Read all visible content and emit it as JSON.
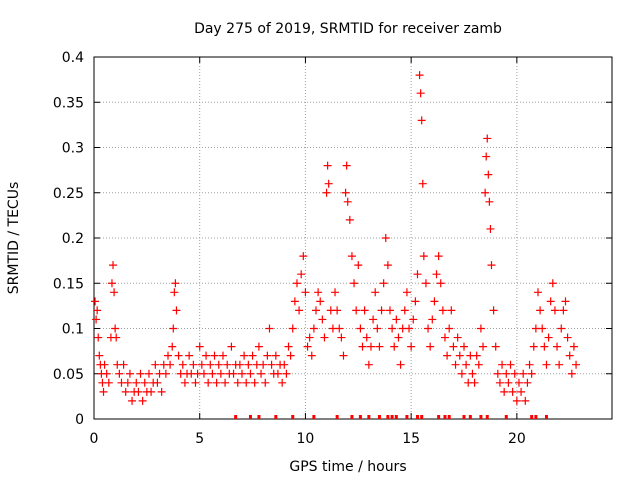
{
  "chart_data": {
    "type": "scatter",
    "title": "Day 275 of 2019, SRMTID for receiver zamb",
    "xlabel": "GPS time / hours",
    "ylabel": "SRMTID / TECUs",
    "xlim": [
      0,
      24.5
    ],
    "ylim": [
      0,
      0.4
    ],
    "x_ticks": [
      0,
      5,
      10,
      15,
      20
    ],
    "x_tick_labels": [
      "0",
      "5",
      "10",
      "15",
      "20"
    ],
    "y_ticks": [
      0,
      0.05,
      0.1,
      0.15,
      0.2,
      0.25,
      0.3,
      0.35,
      0.4
    ],
    "y_tick_labels": [
      "0",
      "0.05",
      "0.1",
      "0.15",
      "0.2",
      "0.25",
      "0.3",
      "0.35",
      "0.4"
    ],
    "grid": true,
    "marker": "plus",
    "series_color": "#ff0000",
    "series": [
      {
        "name": "SRMTID",
        "points": [
          [
            0.05,
            0.13
          ],
          [
            0.1,
            0.11
          ],
          [
            0.15,
            0.12
          ],
          [
            0.2,
            0.09
          ],
          [
            0.25,
            0.07
          ],
          [
            0.3,
            0.06
          ],
          [
            0.35,
            0.05
          ],
          [
            0.4,
            0.04
          ],
          [
            0.45,
            0.03
          ],
          [
            0.5,
            0.06
          ],
          [
            0.6,
            0.05
          ],
          [
            0.7,
            0.04
          ],
          [
            0.8,
            0.09
          ],
          [
            0.85,
            0.15
          ],
          [
            0.9,
            0.17
          ],
          [
            0.95,
            0.14
          ],
          [
            1.0,
            0.1
          ],
          [
            1.05,
            0.09
          ],
          [
            1.1,
            0.06
          ],
          [
            1.2,
            0.05
          ],
          [
            1.3,
            0.04
          ],
          [
            1.4,
            0.06
          ],
          [
            1.5,
            0.03
          ],
          [
            1.6,
            0.04
          ],
          [
            1.7,
            0.05
          ],
          [
            1.8,
            0.02
          ],
          [
            1.9,
            0.03
          ],
          [
            2.0,
            0.04
          ],
          [
            2.1,
            0.03
          ],
          [
            2.2,
            0.05
          ],
          [
            2.3,
            0.02
          ],
          [
            2.4,
            0.04
          ],
          [
            2.5,
            0.03
          ],
          [
            2.6,
            0.05
          ],
          [
            2.7,
            0.03
          ],
          [
            2.8,
            0.04
          ],
          [
            2.9,
            0.06
          ],
          [
            3.0,
            0.04
          ],
          [
            3.1,
            0.05
          ],
          [
            3.2,
            0.03
          ],
          [
            3.3,
            0.06
          ],
          [
            3.4,
            0.05
          ],
          [
            3.5,
            0.07
          ],
          [
            3.6,
            0.06
          ],
          [
            3.7,
            0.08
          ],
          [
            3.75,
            0.1
          ],
          [
            3.8,
            0.14
          ],
          [
            3.85,
            0.15
          ],
          [
            3.9,
            0.12
          ],
          [
            4.0,
            0.07
          ],
          [
            4.1,
            0.05
          ],
          [
            4.2,
            0.06
          ],
          [
            4.3,
            0.04
          ],
          [
            4.4,
            0.05
          ],
          [
            4.5,
            0.07
          ],
          [
            4.6,
            0.05
          ],
          [
            4.7,
            0.06
          ],
          [
            4.8,
            0.04
          ],
          [
            4.9,
            0.05
          ],
          [
            5.0,
            0.08
          ],
          [
            5.1,
            0.06
          ],
          [
            5.2,
            0.05
          ],
          [
            5.3,
            0.07
          ],
          [
            5.4,
            0.04
          ],
          [
            5.5,
            0.06
          ],
          [
            5.6,
            0.05
          ],
          [
            5.7,
            0.07
          ],
          [
            5.8,
            0.04
          ],
          [
            5.9,
            0.06
          ],
          [
            6.0,
            0.05
          ],
          [
            6.1,
            0.07
          ],
          [
            6.2,
            0.04
          ],
          [
            6.3,
            0.06
          ],
          [
            6.4,
            0.05
          ],
          [
            6.5,
            0.08
          ],
          [
            6.6,
            0.05
          ],
          [
            6.7,
            0.06
          ],
          [
            6.8,
            0.04
          ],
          [
            6.9,
            0.06
          ],
          [
            7.0,
            0.05
          ],
          [
            7.1,
            0.07
          ],
          [
            7.2,
            0.04
          ],
          [
            7.3,
            0.06
          ],
          [
            7.4,
            0.05
          ],
          [
            7.5,
            0.07
          ],
          [
            7.6,
            0.04
          ],
          [
            7.7,
            0.06
          ],
          [
            7.8,
            0.08
          ],
          [
            7.9,
            0.05
          ],
          [
            8.0,
            0.06
          ],
          [
            8.1,
            0.04
          ],
          [
            8.2,
            0.07
          ],
          [
            8.3,
            0.1
          ],
          [
            8.4,
            0.06
          ],
          [
            8.5,
            0.05
          ],
          [
            8.6,
            0.07
          ],
          [
            8.7,
            0.05
          ],
          [
            8.8,
            0.06
          ],
          [
            8.9,
            0.04
          ],
          [
            9.0,
            0.06
          ],
          [
            9.1,
            0.05
          ],
          [
            9.2,
            0.08
          ],
          [
            9.3,
            0.07
          ],
          [
            9.4,
            0.1
          ],
          [
            9.5,
            0.13
          ],
          [
            9.6,
            0.15
          ],
          [
            9.7,
            0.12
          ],
          [
            9.8,
            0.16
          ],
          [
            9.9,
            0.18
          ],
          [
            10.0,
            0.14
          ],
          [
            10.1,
            0.08
          ],
          [
            10.2,
            0.09
          ],
          [
            10.3,
            0.07
          ],
          [
            10.4,
            0.1
          ],
          [
            10.5,
            0.12
          ],
          [
            10.6,
            0.14
          ],
          [
            10.7,
            0.13
          ],
          [
            10.8,
            0.11
          ],
          [
            10.9,
            0.09
          ],
          [
            11.0,
            0.25
          ],
          [
            11.05,
            0.28
          ],
          [
            11.1,
            0.26
          ],
          [
            11.2,
            0.12
          ],
          [
            11.3,
            0.1
          ],
          [
            11.4,
            0.14
          ],
          [
            11.5,
            0.12
          ],
          [
            11.6,
            0.1
          ],
          [
            11.7,
            0.09
          ],
          [
            11.8,
            0.07
          ],
          [
            11.9,
            0.25
          ],
          [
            11.95,
            0.28
          ],
          [
            12.0,
            0.24
          ],
          [
            12.1,
            0.22
          ],
          [
            12.2,
            0.18
          ],
          [
            12.3,
            0.15
          ],
          [
            12.4,
            0.12
          ],
          [
            12.5,
            0.17
          ],
          [
            12.6,
            0.1
          ],
          [
            12.7,
            0.08
          ],
          [
            12.8,
            0.12
          ],
          [
            12.9,
            0.09
          ],
          [
            13.0,
            0.06
          ],
          [
            13.1,
            0.08
          ],
          [
            13.2,
            0.11
          ],
          [
            13.3,
            0.14
          ],
          [
            13.4,
            0.1
          ],
          [
            13.5,
            0.08
          ],
          [
            13.6,
            0.12
          ],
          [
            13.7,
            0.15
          ],
          [
            13.8,
            0.2
          ],
          [
            13.9,
            0.17
          ],
          [
            14.0,
            0.12
          ],
          [
            14.1,
            0.1
          ],
          [
            14.2,
            0.08
          ],
          [
            14.3,
            0.11
          ],
          [
            14.4,
            0.09
          ],
          [
            14.5,
            0.06
          ],
          [
            14.6,
            0.1
          ],
          [
            14.7,
            0.12
          ],
          [
            14.8,
            0.14
          ],
          [
            14.9,
            0.1
          ],
          [
            15.0,
            0.08
          ],
          [
            15.1,
            0.11
          ],
          [
            15.2,
            0.13
          ],
          [
            15.3,
            0.16
          ],
          [
            15.4,
            0.38
          ],
          [
            15.45,
            0.36
          ],
          [
            15.5,
            0.33
          ],
          [
            15.55,
            0.26
          ],
          [
            15.6,
            0.18
          ],
          [
            15.7,
            0.15
          ],
          [
            15.8,
            0.1
          ],
          [
            15.9,
            0.08
          ],
          [
            16.0,
            0.11
          ],
          [
            16.1,
            0.13
          ],
          [
            16.2,
            0.16
          ],
          [
            16.3,
            0.18
          ],
          [
            16.4,
            0.15
          ],
          [
            16.5,
            0.12
          ],
          [
            16.6,
            0.09
          ],
          [
            16.7,
            0.07
          ],
          [
            16.8,
            0.1
          ],
          [
            16.9,
            0.12
          ],
          [
            17.0,
            0.08
          ],
          [
            17.1,
            0.06
          ],
          [
            17.2,
            0.09
          ],
          [
            17.3,
            0.07
          ],
          [
            17.4,
            0.05
          ],
          [
            17.5,
            0.08
          ],
          [
            17.6,
            0.06
          ],
          [
            17.7,
            0.04
          ],
          [
            17.8,
            0.07
          ],
          [
            17.9,
            0.05
          ],
          [
            18.0,
            0.04
          ],
          [
            18.1,
            0.07
          ],
          [
            18.2,
            0.06
          ],
          [
            18.3,
            0.1
          ],
          [
            18.4,
            0.08
          ],
          [
            18.5,
            0.25
          ],
          [
            18.55,
            0.29
          ],
          [
            18.6,
            0.31
          ],
          [
            18.65,
            0.27
          ],
          [
            18.7,
            0.24
          ],
          [
            18.75,
            0.21
          ],
          [
            18.8,
            0.17
          ],
          [
            18.9,
            0.12
          ],
          [
            19.0,
            0.08
          ],
          [
            19.1,
            0.05
          ],
          [
            19.2,
            0.04
          ],
          [
            19.3,
            0.06
          ],
          [
            19.4,
            0.03
          ],
          [
            19.5,
            0.05
          ],
          [
            19.6,
            0.04
          ],
          [
            19.7,
            0.06
          ],
          [
            19.8,
            0.03
          ],
          [
            19.9,
            0.05
          ],
          [
            20.0,
            0.02
          ],
          [
            20.1,
            0.04
          ],
          [
            20.2,
            0.03
          ],
          [
            20.3,
            0.05
          ],
          [
            20.4,
            0.02
          ],
          [
            20.5,
            0.04
          ],
          [
            20.6,
            0.06
          ],
          [
            20.7,
            0.05
          ],
          [
            20.8,
            0.08
          ],
          [
            20.9,
            0.1
          ],
          [
            21.0,
            0.14
          ],
          [
            21.1,
            0.12
          ],
          [
            21.2,
            0.1
          ],
          [
            21.3,
            0.08
          ],
          [
            21.4,
            0.06
          ],
          [
            21.5,
            0.09
          ],
          [
            21.6,
            0.13
          ],
          [
            21.7,
            0.15
          ],
          [
            21.8,
            0.12
          ],
          [
            21.9,
            0.08
          ],
          [
            22.0,
            0.06
          ],
          [
            22.1,
            0.1
          ],
          [
            22.2,
            0.12
          ],
          [
            22.3,
            0.13
          ],
          [
            22.4,
            0.09
          ],
          [
            22.5,
            0.07
          ],
          [
            22.6,
            0.05
          ],
          [
            22.7,
            0.08
          ],
          [
            22.8,
            0.06
          ]
        ]
      }
    ],
    "zero_markers_x": [
      6.7,
      7.4,
      7.8,
      8.6,
      9.4,
      10.4,
      11.5,
      12.2,
      12.6,
      13.0,
      13.5,
      13.9,
      14.1,
      14.3,
      14.8,
      15.3,
      15.5,
      16.3,
      16.6,
      16.8,
      17.5,
      17.8,
      18.3,
      18.6,
      19.5,
      20.7,
      20.9,
      21.4
    ]
  }
}
